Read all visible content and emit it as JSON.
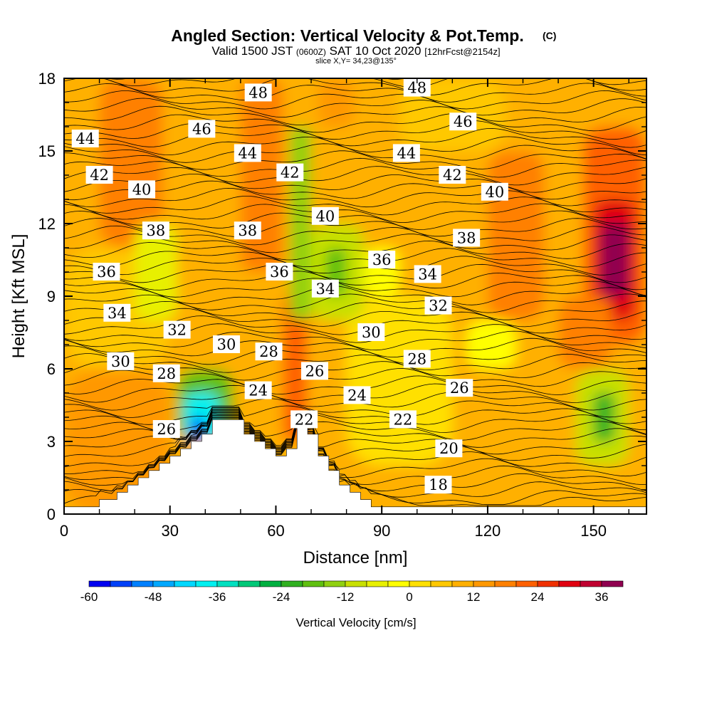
{
  "title": "Angled Section: Vertical Velocity & Pot.Temp.",
  "title_units": "(C)",
  "subtitle_parts": [
    "Valid 1500 JST",
    "(0600Z)",
    "SAT 10 Oct 2020",
    "[12hrFcst@2154z]"
  ],
  "slice_label": "slice X,Y= 34,23@135°",
  "chart_data": {
    "type": "heatmap",
    "title": "Angled Section: Vertical Velocity & Pot.Temp.",
    "xlabel": "Distance [nm]",
    "ylabel": "Height [Kft MSL]",
    "xlim": [
      0,
      165
    ],
    "ylim": [
      0,
      18
    ],
    "x_ticks": [
      0,
      30,
      60,
      90,
      120,
      150
    ],
    "y_ticks": [
      0,
      3,
      6,
      9,
      12,
      15,
      18
    ],
    "colorbar": {
      "label": "Vertical Velocity [cm/s]",
      "tick_values": [
        -60,
        -48,
        -36,
        -24,
        -12,
        0,
        12,
        24,
        36
      ],
      "levels": [
        -60,
        -56,
        -52,
        -48,
        -44,
        -40,
        -36,
        -32,
        -28,
        -24,
        -20,
        -16,
        -12,
        -8,
        -4,
        0,
        4,
        8,
        12,
        16,
        20,
        24,
        28,
        32,
        36,
        40
      ],
      "colors": [
        "#0000f0",
        "#0040f8",
        "#0080ff",
        "#00a8ff",
        "#00d8ff",
        "#00f0f0",
        "#00e0c0",
        "#00c878",
        "#00b040",
        "#30b020",
        "#60c010",
        "#90d010",
        "#c8e000",
        "#e8f000",
        "#ffff00",
        "#ffe000",
        "#ffc800",
        "#ffb000",
        "#ff9800",
        "#ff8000",
        "#ff6000",
        "#f03000",
        "#e00010",
        "#c00030",
        "#900050",
        "#600080"
      ]
    },
    "vertical_velocity_cells": [
      {
        "x": [
          0,
          165
        ],
        "y": [
          0,
          18
        ],
        "value": 10
      },
      {
        "x": [
          0,
          30
        ],
        "y": [
          0,
          6
        ],
        "value": 12
      },
      {
        "x": [
          60,
          165
        ],
        "y": [
          7,
          14
        ],
        "value": 11
      },
      {
        "x": [
          0,
          30
        ],
        "y": [
          6,
          11
        ],
        "value": 6
      },
      {
        "x": [
          80,
          110
        ],
        "y": [
          2,
          9
        ],
        "value": 3
      },
      {
        "x": [
          95,
          125
        ],
        "y": [
          15,
          18
        ],
        "value": 4
      },
      {
        "x": [
          14,
          24
        ],
        "y": [
          13,
          17
        ],
        "value": 26
      },
      {
        "x": [
          10,
          28
        ],
        "y": [
          11,
          18
        ],
        "value": 18
      },
      {
        "x": [
          50,
          62
        ],
        "y": [
          10,
          18
        ],
        "value": 16
      },
      {
        "x": [
          72,
          82
        ],
        "y": [
          16,
          18
        ],
        "value": 14
      },
      {
        "x": [
          120,
          136
        ],
        "y": [
          8,
          15
        ],
        "value": 16
      },
      {
        "x": [
          147,
          165
        ],
        "y": [
          7,
          16
        ],
        "value": 22
      },
      {
        "x": [
          150,
          162
        ],
        "y": [
          8,
          13
        ],
        "value": 30
      },
      {
        "x": [
          152,
          160
        ],
        "y": [
          9,
          12
        ],
        "value": 38
      },
      {
        "x": [
          62,
          69
        ],
        "y": [
          3,
          9
        ],
        "value": 20
      },
      {
        "x": [
          140,
          155
        ],
        "y": [
          6,
          9
        ],
        "value": 18
      },
      {
        "x": [
          20,
          32
        ],
        "y": [
          8,
          12
        ],
        "value": -6
      },
      {
        "x": [
          64,
          70
        ],
        "y": [
          8,
          16
        ],
        "value": -14
      },
      {
        "x": [
          70,
          85
        ],
        "y": [
          8,
          12
        ],
        "value": -12
      },
      {
        "x": [
          74,
          80
        ],
        "y": [
          9,
          11
        ],
        "value": -20
      },
      {
        "x": [
          85,
          95
        ],
        "y": [
          9,
          11
        ],
        "value": -4
      },
      {
        "x": [
          114,
          128
        ],
        "y": [
          6,
          8
        ],
        "value": -4
      },
      {
        "x": [
          145,
          160
        ],
        "y": [
          2,
          6
        ],
        "value": -12
      },
      {
        "x": [
          150,
          156
        ],
        "y": [
          3,
          5
        ],
        "value": -22
      },
      {
        "x": [
          32,
          48
        ],
        "y": [
          3,
          6
        ],
        "value": -20
      },
      {
        "x": [
          34,
          44
        ],
        "y": [
          3,
          5
        ],
        "value": -40
      },
      {
        "x": [
          36,
          40
        ],
        "y": [
          3,
          4
        ],
        "value": -56
      }
    ],
    "terrain": [
      [
        0,
        0.3
      ],
      [
        10,
        0.3
      ],
      [
        10,
        0.6
      ],
      [
        15,
        0.6
      ],
      [
        15,
        0.9
      ],
      [
        18,
        0.9
      ],
      [
        18,
        1.2
      ],
      [
        21,
        1.2
      ],
      [
        21,
        1.5
      ],
      [
        24,
        1.5
      ],
      [
        24,
        1.8
      ],
      [
        27,
        1.8
      ],
      [
        27,
        2.1
      ],
      [
        30,
        2.1
      ],
      [
        30,
        2.4
      ],
      [
        33,
        2.4
      ],
      [
        33,
        2.7
      ],
      [
        36,
        2.7
      ],
      [
        36,
        3.0
      ],
      [
        39,
        3.0
      ],
      [
        39,
        3.3
      ],
      [
        42,
        3.3
      ],
      [
        42,
        3.9
      ],
      [
        51,
        3.9
      ],
      [
        51,
        3.3
      ],
      [
        54,
        3.3
      ],
      [
        54,
        3.0
      ],
      [
        57,
        3.0
      ],
      [
        57,
        2.7
      ],
      [
        60,
        2.7
      ],
      [
        60,
        2.4
      ],
      [
        63,
        2.4
      ],
      [
        63,
        2.7
      ],
      [
        66,
        2.7
      ],
      [
        66,
        3.6
      ],
      [
        69,
        3.6
      ],
      [
        69,
        3.3
      ],
      [
        72,
        3.3
      ],
      [
        72,
        2.4
      ],
      [
        75,
        2.4
      ],
      [
        75,
        1.8
      ],
      [
        78,
        1.8
      ],
      [
        78,
        1.2
      ],
      [
        81,
        1.2
      ],
      [
        81,
        0.9
      ],
      [
        84,
        0.9
      ],
      [
        84,
        0.6
      ],
      [
        87,
        0.6
      ],
      [
        87,
        0.3
      ],
      [
        165,
        0.3
      ]
    ],
    "isentrope_labels": [
      {
        "value": "48",
        "x": 55,
        "y": 17.4
      },
      {
        "value": "48",
        "x": 100,
        "y": 17.6
      },
      {
        "value": "46",
        "x": 39,
        "y": 15.9
      },
      {
        "value": "46",
        "x": 113,
        "y": 16.2
      },
      {
        "value": "44",
        "x": 6,
        "y": 15.5
      },
      {
        "value": "44",
        "x": 52,
        "y": 14.9
      },
      {
        "value": "44",
        "x": 97,
        "y": 14.9
      },
      {
        "value": "42",
        "x": 10,
        "y": 14.0
      },
      {
        "value": "42",
        "x": 64,
        "y": 14.1
      },
      {
        "value": "42",
        "x": 110,
        "y": 14.0
      },
      {
        "value": "40",
        "x": 22,
        "y": 13.4
      },
      {
        "value": "40",
        "x": 74,
        "y": 12.3
      },
      {
        "value": "40",
        "x": 122,
        "y": 13.3
      },
      {
        "value": "38",
        "x": 26,
        "y": 11.7
      },
      {
        "value": "38",
        "x": 52,
        "y": 11.7
      },
      {
        "value": "38",
        "x": 114,
        "y": 11.4
      },
      {
        "value": "36",
        "x": 12,
        "y": 10.0
      },
      {
        "value": "36",
        "x": 61,
        "y": 10.0
      },
      {
        "value": "36",
        "x": 90,
        "y": 10.5
      },
      {
        "value": "34",
        "x": 15,
        "y": 8.3
      },
      {
        "value": "34",
        "x": 74,
        "y": 9.3
      },
      {
        "value": "34",
        "x": 103,
        "y": 9.9
      },
      {
        "value": "32",
        "x": 32,
        "y": 7.6
      },
      {
        "value": "32",
        "x": 106,
        "y": 8.6
      },
      {
        "value": "30",
        "x": 16,
        "y": 6.3
      },
      {
        "value": "30",
        "x": 46,
        "y": 7.0
      },
      {
        "value": "30",
        "x": 87,
        "y": 7.5
      },
      {
        "value": "28",
        "x": 29,
        "y": 5.8
      },
      {
        "value": "28",
        "x": 58,
        "y": 6.7
      },
      {
        "value": "28",
        "x": 100,
        "y": 6.4
      },
      {
        "value": "26",
        "x": 29,
        "y": 3.5
      },
      {
        "value": "26",
        "x": 71,
        "y": 5.9
      },
      {
        "value": "26",
        "x": 112,
        "y": 5.2
      },
      {
        "value": "24",
        "x": 55,
        "y": 5.1
      },
      {
        "value": "24",
        "x": 83,
        "y": 4.9
      },
      {
        "value": "22",
        "x": 68,
        "y": 3.9
      },
      {
        "value": "22",
        "x": 96,
        "y": 3.9
      },
      {
        "value": "20",
        "x": 109,
        "y": 2.7
      },
      {
        "value": "18",
        "x": 106,
        "y": 1.2
      }
    ]
  }
}
